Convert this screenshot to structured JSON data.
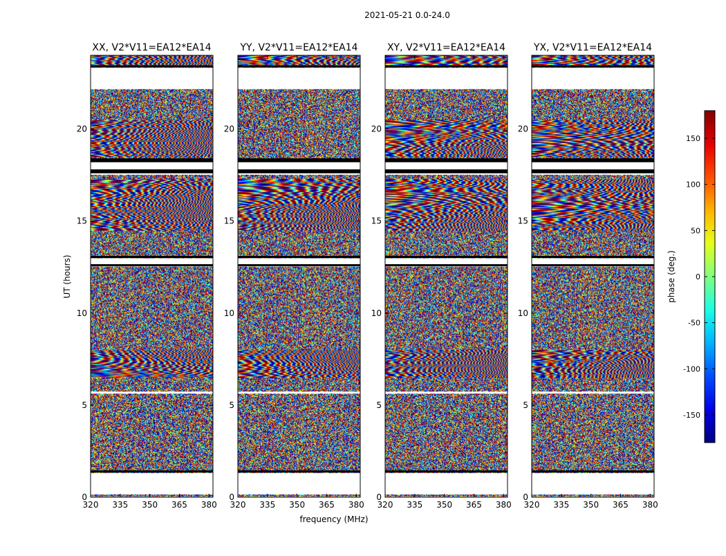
{
  "chart_data": {
    "type": "heatmap",
    "suptitle": "2021-05-21 0.0-24.0",
    "xlabel": "frequency (MHz)",
    "ylabel": "UT (hours)",
    "xlim": [
      320,
      382
    ],
    "ylim": [
      0,
      24
    ],
    "xticks": [
      "320",
      "335",
      "350",
      "365",
      "380"
    ],
    "xtick_values": [
      320,
      335,
      350,
      365,
      380
    ],
    "yticks": [
      "0",
      "5",
      "10",
      "15",
      "20"
    ],
    "ytick_values": [
      0,
      5,
      10,
      15,
      20
    ],
    "panels": [
      {
        "title": "XX, V2*V11=EA12*EA14"
      },
      {
        "title": "YY, V2*V11=EA12*EA14"
      },
      {
        "title": "XY, V2*V11=EA12*EA14"
      },
      {
        "title": "YX, V2*V11=EA12*EA14"
      }
    ],
    "colorbar": {
      "label": "phase (deg.)",
      "range": [
        -180,
        180
      ],
      "ticks": [
        "-150",
        "-100",
        "-50",
        "0",
        "50",
        "100",
        "150"
      ],
      "tick_values": [
        -150,
        -100,
        -50,
        0,
        50,
        100,
        150
      ],
      "colormap": "jet"
    },
    "gaps_hours": [
      [
        0.0,
        0.05
      ],
      [
        0.15,
        1.35
      ],
      [
        23.35,
        22.2
      ],
      [
        12.55,
        13.0
      ],
      [
        17.55,
        18.3
      ],
      [
        5.65,
        5.75
      ]
    ],
    "flag_lines_hours": [
      17.65,
      17.75,
      18.25,
      18.35,
      13.05,
      12.6,
      1.4,
      23.4
    ]
  }
}
